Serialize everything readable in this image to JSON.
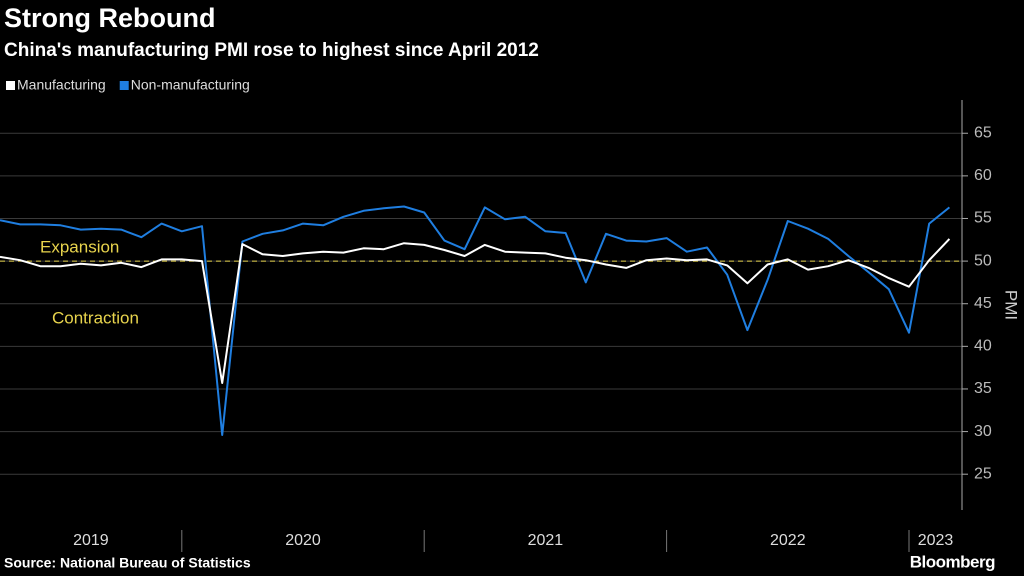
{
  "chart_data": {
    "type": "line",
    "title": "Strong Rebound",
    "subtitle": "China's manufacturing PMI rose to highest since April 2012",
    "y_axis_label": "PMI",
    "source": "Source: National Bureau of Statistics",
    "brand": "Bloomberg",
    "year_labels": [
      "2019",
      "2020",
      "2021",
      "2022",
      "2023"
    ],
    "series": [
      {
        "name": "Manufacturing",
        "color": "#ffffff",
        "values": [
          50.5,
          50.1,
          49.4,
          49.4,
          49.7,
          49.5,
          49.8,
          49.3,
          50.2,
          50.2,
          50.0,
          35.7,
          52.0,
          50.8,
          50.6,
          50.9,
          51.1,
          51.0,
          51.5,
          51.4,
          52.1,
          51.9,
          51.3,
          50.6,
          51.9,
          51.1,
          51.0,
          50.9,
          50.4,
          50.1,
          49.6,
          49.2,
          50.1,
          50.3,
          50.1,
          50.2,
          49.5,
          47.4,
          49.6,
          50.2,
          49.0,
          49.4,
          50.1,
          49.2,
          48.0,
          47.0,
          50.1,
          52.6
        ]
      },
      {
        "name": "Non-manufacturing",
        "color": "#1f7ee0",
        "values": [
          54.8,
          54.3,
          54.3,
          54.2,
          53.7,
          53.8,
          53.7,
          52.8,
          54.4,
          53.5,
          54.1,
          29.6,
          52.3,
          53.2,
          53.6,
          54.4,
          54.2,
          55.2,
          55.9,
          56.2,
          56.4,
          55.7,
          52.4,
          51.4,
          56.3,
          54.9,
          55.2,
          53.5,
          53.3,
          47.5,
          53.2,
          52.4,
          52.3,
          52.7,
          51.1,
          51.6,
          48.4,
          41.9,
          47.8,
          54.7,
          53.8,
          52.6,
          50.6,
          48.7,
          46.7,
          41.6,
          54.4,
          56.3
        ]
      }
    ],
    "reference_line": {
      "value": 50,
      "color": "#e8d44d",
      "above_label": "Expansion",
      "below_label": "Contraction"
    },
    "ylim": [
      20.8,
      68.9
    ],
    "yticks": [
      25,
      30,
      35,
      40,
      45,
      50,
      55,
      60,
      65
    ],
    "grid": true,
    "legend": "top-left"
  }
}
